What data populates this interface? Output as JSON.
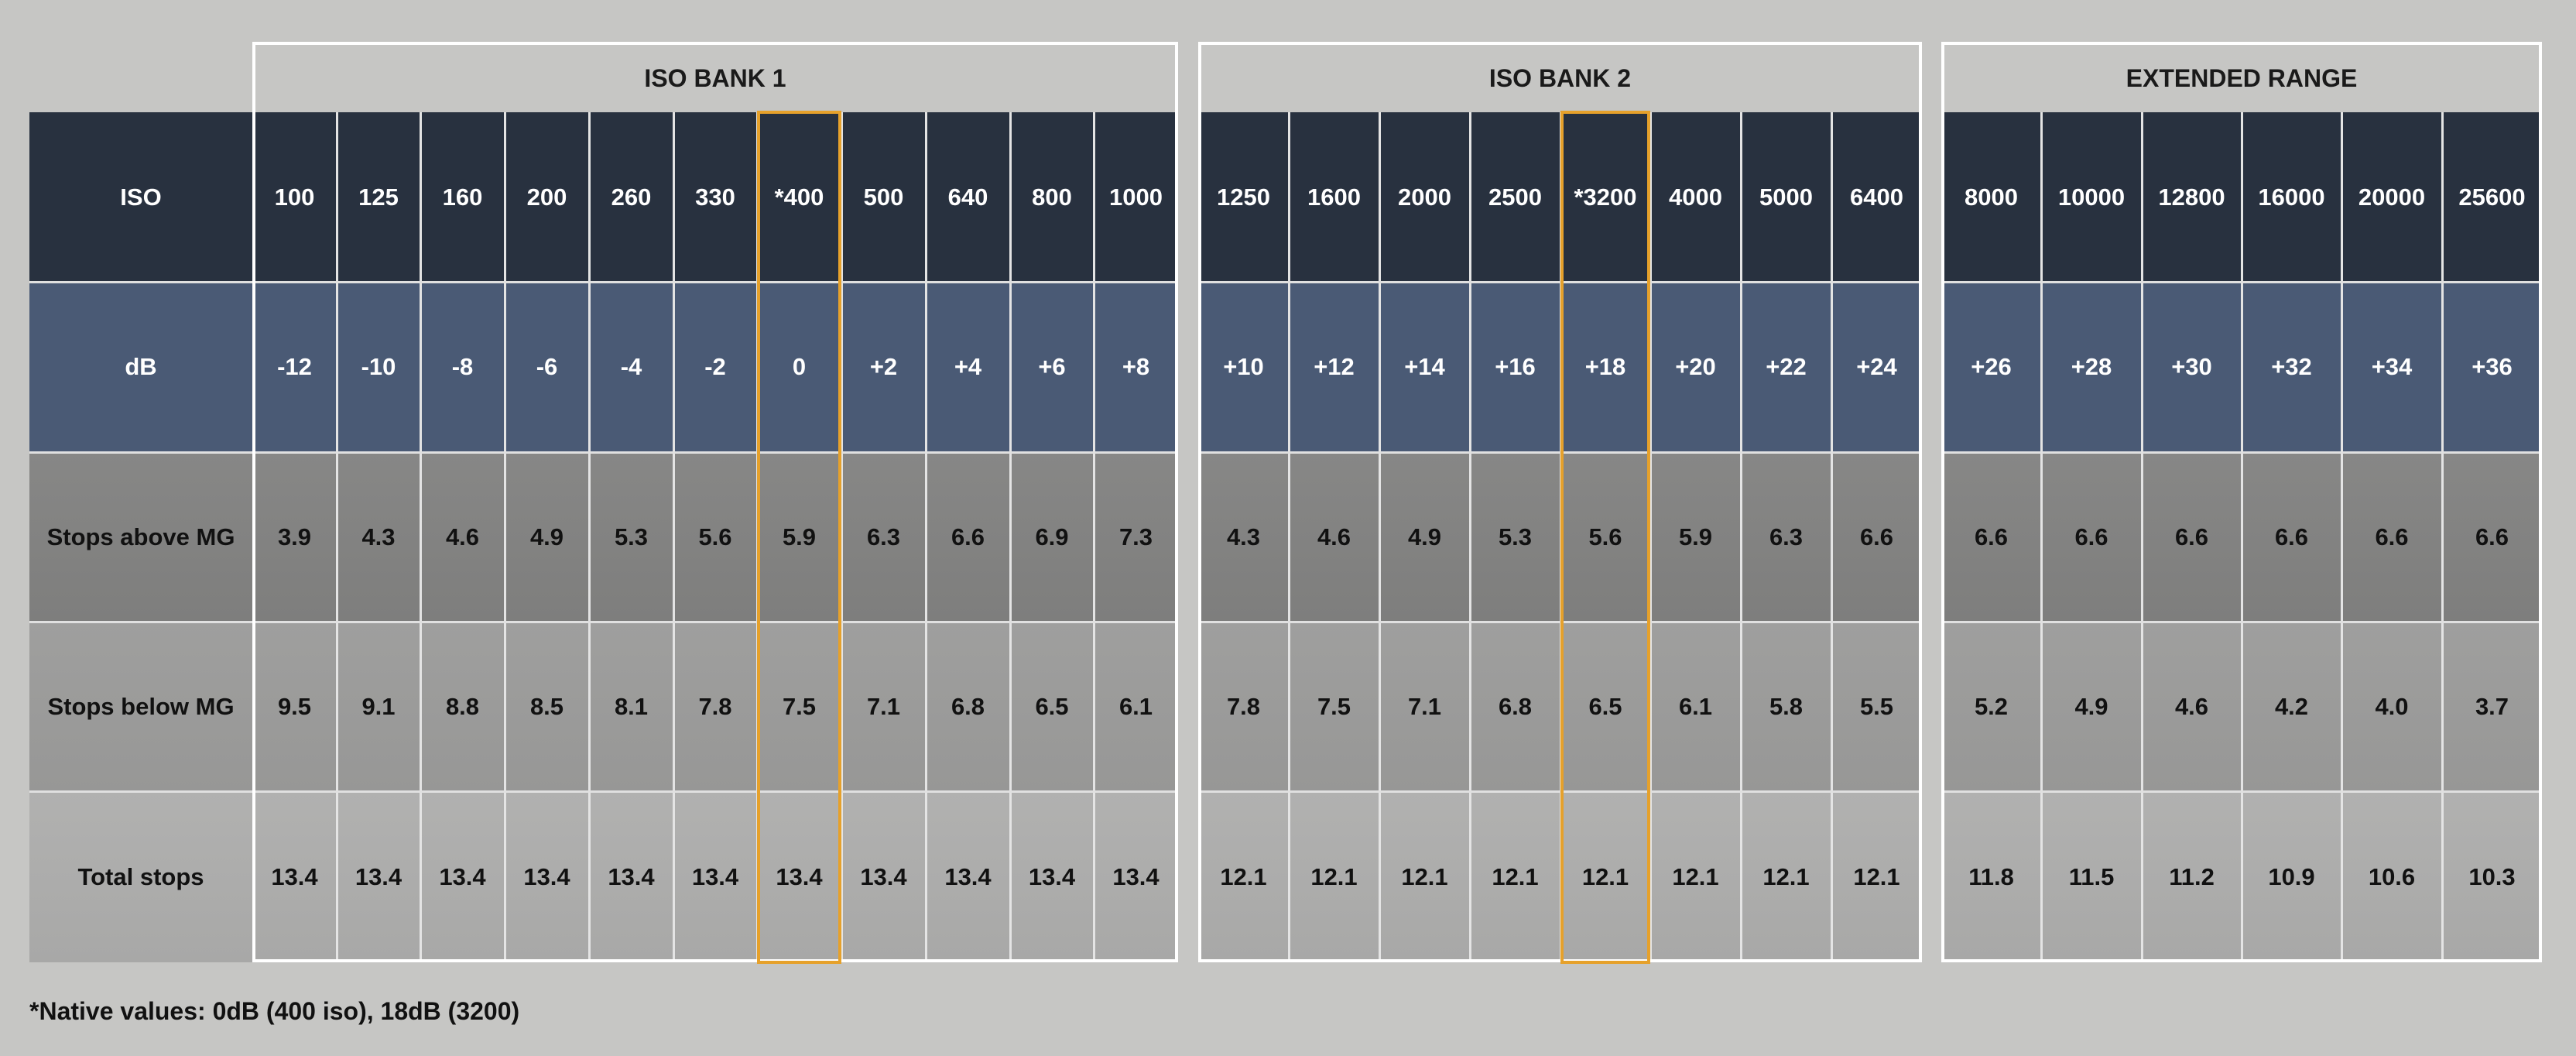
{
  "chart_data": {
    "type": "table",
    "row_labels": [
      "ISO",
      "dB",
      "Stops above MG",
      "Stops below MG",
      "Total stops"
    ],
    "groups": [
      {
        "name": "ISO BANK 1",
        "iso": [
          "100",
          "125",
          "160",
          "200",
          "260",
          "330",
          "*400",
          "500",
          "640",
          "800",
          "1000"
        ],
        "db": [
          "-12",
          "-10",
          "-8",
          "-6",
          "-4",
          "-2",
          "0",
          "+2",
          "+4",
          "+6",
          "+8"
        ],
        "stops_above_mg": [
          3.9,
          4.3,
          4.6,
          4.9,
          5.3,
          5.6,
          5.9,
          6.3,
          6.6,
          6.9,
          7.3
        ],
        "stops_below_mg": [
          9.5,
          9.1,
          8.8,
          8.5,
          8.1,
          7.8,
          7.5,
          7.1,
          6.8,
          6.5,
          6.1
        ],
        "total_stops": [
          13.4,
          13.4,
          13.4,
          13.4,
          13.4,
          13.4,
          13.4,
          13.4,
          13.4,
          13.4,
          13.4
        ],
        "native_index": 6
      },
      {
        "name": "ISO BANK 2",
        "iso": [
          "1250",
          "1600",
          "2000",
          "2500",
          "*3200",
          "4000",
          "5000",
          "6400"
        ],
        "db": [
          "+10",
          "+12",
          "+14",
          "+16",
          "+18",
          "+20",
          "+22",
          "+24"
        ],
        "stops_above_mg": [
          4.3,
          4.6,
          4.9,
          5.3,
          5.6,
          5.9,
          6.3,
          6.6
        ],
        "stops_below_mg": [
          7.8,
          7.5,
          7.1,
          6.8,
          6.5,
          6.1,
          5.8,
          5.5
        ],
        "total_stops": [
          12.1,
          12.1,
          12.1,
          12.1,
          12.1,
          12.1,
          12.1,
          12.1
        ],
        "native_index": 4
      },
      {
        "name": "EXTENDED RANGE",
        "iso": [
          "8000",
          "10000",
          "12800",
          "16000",
          "20000",
          "25600"
        ],
        "db": [
          "+26",
          "+28",
          "+30",
          "+32",
          "+34",
          "+36"
        ],
        "stops_above_mg": [
          6.6,
          6.6,
          6.6,
          6.6,
          6.6,
          6.6
        ],
        "stops_below_mg": [
          5.2,
          4.9,
          4.6,
          4.2,
          4.0,
          3.7
        ],
        "total_stops": [
          11.8,
          11.5,
          11.2,
          10.9,
          10.6,
          10.3
        ],
        "native_index": null
      }
    ],
    "highlight_color": "#e6a12b",
    "footnote": "*Native values: 0dB (400 iso), 18dB (3200)"
  }
}
